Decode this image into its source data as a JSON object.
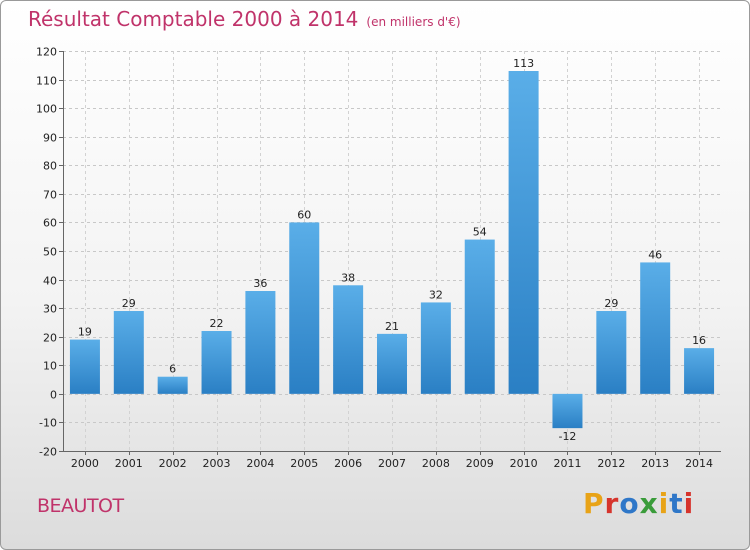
{
  "header": {
    "title": "Résultat Comptable 2000 à 2014",
    "subtitle": "(en milliers d'€)"
  },
  "footer": {
    "town": "BEAUTOT",
    "brand": "Proxiti"
  },
  "colors": {
    "title": "#c0336a",
    "bar_light": "#5aaee8",
    "bar_dark": "#2a7fc4",
    "brand_letters": [
      "#e8a317",
      "#d6342c",
      "#2f77c8",
      "#3a9c3a",
      "#e8a317",
      "#2f77c8",
      "#d6342c"
    ]
  },
  "chart_data": {
    "type": "bar",
    "title": "Résultat Comptable 2000 à 2014",
    "subtitle": "(en milliers d'€)",
    "categories": [
      "2000",
      "2001",
      "2002",
      "2003",
      "2004",
      "2005",
      "2006",
      "2007",
      "2008",
      "2009",
      "2010",
      "2011",
      "2012",
      "2013",
      "2014"
    ],
    "values": [
      19,
      29,
      6,
      22,
      36,
      60,
      38,
      21,
      32,
      54,
      113,
      -12,
      29,
      46,
      16
    ],
    "ylim": [
      -20,
      120
    ],
    "yticks": [
      -20,
      -10,
      0,
      10,
      20,
      30,
      40,
      50,
      60,
      70,
      80,
      90,
      100,
      110,
      120
    ],
    "grid": true,
    "xlabel": "",
    "ylabel": ""
  }
}
